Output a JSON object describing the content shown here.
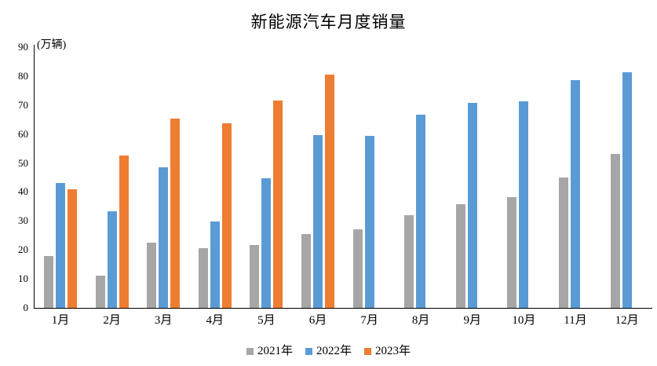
{
  "title": "新能源汽车月度销量",
  "chart_data": {
    "type": "bar",
    "title": "新能源汽车月度销量",
    "ylabel": "(万辆)",
    "xlabel": "",
    "ylim": [
      0,
      90
    ],
    "ytick_step": 10,
    "yticks": [
      "0",
      "10",
      "20",
      "30",
      "40",
      "50",
      "60",
      "70",
      "80",
      "90"
    ],
    "grid": false,
    "legend_position": "bottom",
    "categories": [
      "1月",
      "2月",
      "3月",
      "4月",
      "5月",
      "6月",
      "7月",
      "8月",
      "9月",
      "10月",
      "11月",
      "12月"
    ],
    "series": [
      {
        "name": "2021年",
        "color": "#A6A6A6",
        "values": [
          17.9,
          11.0,
          22.6,
          20.6,
          21.7,
          25.6,
          27.1,
          32.1,
          35.7,
          38.3,
          45.0,
          53.1
        ]
      },
      {
        "name": "2022年",
        "color": "#5B9BD5",
        "values": [
          43.1,
          33.4,
          48.4,
          29.9,
          44.7,
          59.6,
          59.3,
          66.6,
          70.8,
          71.4,
          78.6,
          81.4
        ]
      },
      {
        "name": "2023年",
        "color": "#ED7D31",
        "values": [
          40.8,
          52.5,
          65.3,
          63.6,
          71.7,
          80.6,
          null,
          null,
          null,
          null,
          null,
          null
        ]
      }
    ]
  },
  "colors": {
    "background": "#FFFFFF",
    "axis": "#000000",
    "text": "#000000",
    "series_2021": "#A6A6A6",
    "series_2022": "#5B9BD5",
    "series_2023": "#ED7D31"
  }
}
